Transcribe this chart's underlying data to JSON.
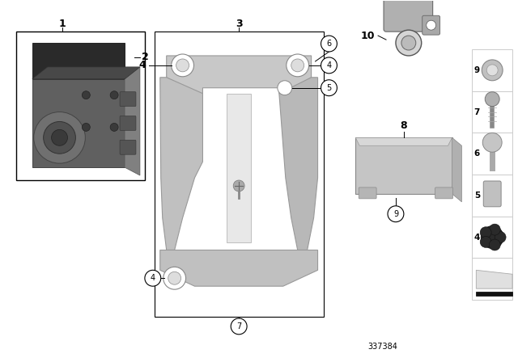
{
  "bg_color": "#ffffff",
  "part_number": "337384",
  "label_fontsize": 8,
  "circle_label_fontsize": 7,
  "line_color": "#000000",
  "component_gray": "#b8b8b8",
  "dark_gray": "#555555",
  "light_gray": "#d0d0d0",
  "border_color": "#000000"
}
